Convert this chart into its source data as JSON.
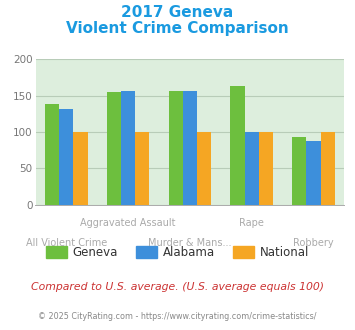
{
  "title_line1": "2017 Geneva",
  "title_line2": "Violent Crime Comparison",
  "title_color": "#1a9ae0",
  "categories_x": [
    0,
    1,
    2,
    3,
    4
  ],
  "top_labels": [
    "",
    "Aggravated Assault",
    "",
    "Rape",
    ""
  ],
  "bot_labels": [
    "All Violent Crime",
    "",
    "Murder & Mans...",
    "",
    "Robbery"
  ],
  "series": {
    "Geneva": [
      138,
      155,
      156,
      163,
      93
    ],
    "Alabama": [
      131,
      157,
      157,
      100,
      87
    ],
    "National": [
      100,
      100,
      100,
      100,
      100
    ]
  },
  "colors": {
    "Geneva": "#6dbf3e",
    "Alabama": "#3d8fdb",
    "National": "#f5a623"
  },
  "ylim": [
    0,
    200
  ],
  "yticks": [
    0,
    50,
    100,
    150,
    200
  ],
  "plot_bg": "#ddeedd",
  "grid_color": "#b8ccb8",
  "legend_labels": [
    "Geneva",
    "Alabama",
    "National"
  ],
  "footer_text": "Compared to U.S. average. (U.S. average equals 100)",
  "footer_color": "#cc3333",
  "copyright_text": "© 2025 CityRating.com - https://www.cityrating.com/crime-statistics/",
  "copyright_color": "#888888",
  "label_color": "#aaaaaa",
  "bar_width": 0.23
}
